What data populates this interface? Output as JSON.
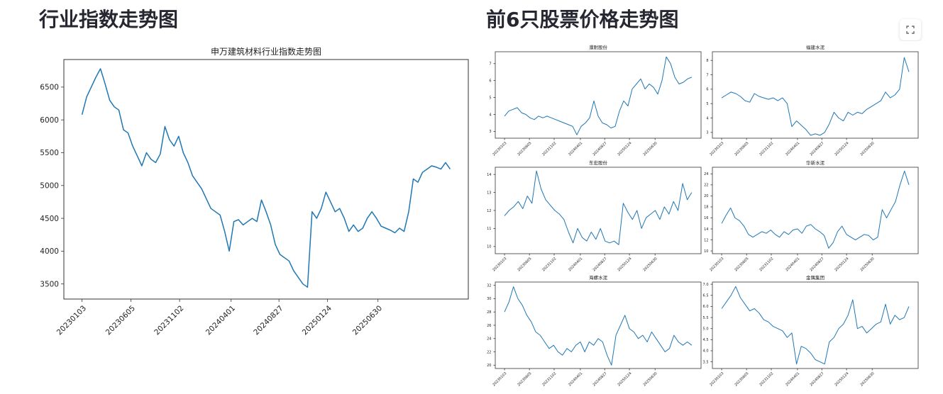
{
  "page": {
    "left_heading": "行业指数走势图",
    "right_heading": "前6只股票价格走势图"
  },
  "colors": {
    "line": "#1f77b4",
    "heading": "#262730"
  },
  "icons": {
    "fullscreen": "fullscreen-icon"
  },
  "chart_data": [
    {
      "type": "line",
      "title": "申万建筑材料行业指数走势图",
      "xlabel": "",
      "ylabel": "",
      "x_ticks": [
        "20230103",
        "20230605",
        "20231102",
        "20240401",
        "20240827",
        "20250124",
        "20250630"
      ],
      "y_ticks": [
        "3500",
        "4000",
        "4500",
        "5000",
        "5500",
        "6000",
        "6500"
      ],
      "ylim": [
        3270,
        6920
      ],
      "grid": false,
      "x_start": "2023-01-03",
      "x_end": "2025-10-20",
      "series": [
        {
          "values": [
            6080,
            6350,
            6500,
            6650,
            6780,
            6550,
            6300,
            6200,
            6150,
            5850,
            5800,
            5600,
            5450,
            5300,
            5500,
            5400,
            5350,
            5480,
            5900,
            5700,
            5600,
            5750,
            5500,
            5350,
            5150,
            5050,
            4950,
            4800,
            4650,
            4600,
            4550,
            4300,
            4000,
            4450,
            4480,
            4400,
            4450,
            4500,
            4450,
            4780,
            4600,
            4400,
            4100,
            3950,
            3900,
            3850,
            3700,
            3600,
            3500,
            3450,
            4600,
            4500,
            4650,
            4900,
            4750,
            4600,
            4650,
            4500,
            4300,
            4400,
            4300,
            4350,
            4500,
            4600,
            4500,
            4380,
            4350,
            4320,
            4280,
            4350,
            4300,
            4600,
            5100,
            5050,
            5200,
            5250,
            5300,
            5280,
            5250,
            5350,
            5250
          ]
        }
      ]
    },
    {
      "type": "line",
      "title": "濮耐股份",
      "x_ticks": [
        "20230103",
        "20230605",
        "20231102",
        "20240401",
        "20240827",
        "20250124",
        "20250630"
      ],
      "y_ticks": [
        "3",
        "4",
        "5",
        "6",
        "7"
      ],
      "ylim": [
        2.6,
        7.7
      ],
      "series": [
        {
          "values": [
            3.9,
            4.2,
            4.3,
            4.4,
            4.1,
            4.0,
            3.8,
            3.7,
            3.9,
            3.8,
            3.9,
            3.8,
            3.7,
            3.6,
            3.5,
            3.4,
            3.3,
            2.8,
            3.3,
            3.5,
            3.8,
            4.8,
            3.9,
            3.5,
            3.4,
            3.2,
            3.3,
            4.2,
            4.8,
            4.5,
            5.5,
            5.8,
            6.1,
            5.5,
            5.8,
            5.6,
            5.2,
            6.0,
            7.4,
            7.0,
            6.2,
            5.8,
            5.9,
            6.1,
            6.2
          ]
        }
      ]
    },
    {
      "type": "line",
      "title": "福建水泥",
      "x_ticks": [
        "20230103",
        "20230605",
        "20231102",
        "20240401",
        "20240827",
        "20250124",
        "20250630"
      ],
      "y_ticks": [
        "3",
        "4",
        "5",
        "6",
        "7",
        "8"
      ],
      "ylim": [
        2.6,
        8.6
      ],
      "series": [
        {
          "values": [
            5.4,
            5.6,
            5.8,
            5.7,
            5.5,
            5.2,
            5.1,
            5.7,
            5.5,
            5.4,
            5.3,
            5.4,
            5.2,
            5.4,
            5.0,
            3.4,
            3.8,
            3.5,
            3.2,
            2.8,
            2.9,
            2.8,
            3.0,
            3.6,
            4.4,
            4.0,
            3.8,
            4.4,
            4.2,
            4.4,
            4.3,
            4.6,
            4.8,
            5.0,
            5.2,
            5.8,
            5.4,
            5.6,
            6.0,
            8.2,
            7.2
          ]
        }
      ]
    },
    {
      "type": "line",
      "title": "东宏股份",
      "x_ticks": [
        "20230103",
        "20230605",
        "20231102",
        "20240401",
        "20240827",
        "20250124",
        "20250630"
      ],
      "y_ticks": [
        "10",
        "11",
        "12",
        "13",
        "14"
      ],
      "ylim": [
        9.6,
        14.4
      ],
      "series": [
        {
          "values": [
            11.7,
            12.0,
            12.2,
            12.5,
            12.1,
            12.8,
            12.4,
            14.2,
            13.2,
            12.6,
            12.3,
            12.0,
            11.8,
            11.5,
            10.8,
            10.2,
            11.0,
            10.5,
            10.3,
            10.8,
            10.4,
            11.0,
            10.3,
            10.2,
            10.3,
            10.1,
            12.4,
            11.9,
            11.5,
            12.0,
            11.0,
            11.6,
            11.8,
            12.0,
            11.5,
            12.2,
            11.8,
            12.5,
            12.0,
            13.5,
            12.6,
            13.0
          ]
        }
      ]
    },
    {
      "type": "line",
      "title": "华新水泥",
      "x_ticks": [
        "20230103",
        "20230605",
        "20231102",
        "20240401",
        "20240827",
        "20250124",
        "20250630"
      ],
      "y_ticks": [
        "10",
        "12",
        "14",
        "16",
        "18",
        "20",
        "22",
        "24"
      ],
      "ylim": [
        9.5,
        25.2
      ],
      "series": [
        {
          "values": [
            15.0,
            16.5,
            17.8,
            16.0,
            15.5,
            14.5,
            13.0,
            12.5,
            13.0,
            13.5,
            13.2,
            13.8,
            13.0,
            12.5,
            13.5,
            13.0,
            13.8,
            14.0,
            13.2,
            14.5,
            14.8,
            14.0,
            13.5,
            12.8,
            10.5,
            11.5,
            13.5,
            14.5,
            13.0,
            12.5,
            12.0,
            12.5,
            13.0,
            12.8,
            12.0,
            12.5,
            17.5,
            16.0,
            17.5,
            19.0,
            22.0,
            24.5,
            22.0
          ]
        }
      ]
    },
    {
      "type": "line",
      "title": "海螺水泥",
      "x_ticks": [
        "20230103",
        "20230605",
        "20231102",
        "20240401",
        "20240827",
        "20250124",
        "20250630"
      ],
      "y_ticks": [
        "20",
        "22",
        "24",
        "26",
        "28",
        "30",
        "32"
      ],
      "ylim": [
        19.5,
        32.5
      ],
      "series": [
        {
          "values": [
            28.0,
            29.5,
            31.8,
            30.0,
            29.0,
            27.5,
            26.5,
            25.0,
            24.5,
            23.5,
            22.5,
            23.0,
            22.0,
            21.5,
            22.5,
            22.0,
            23.0,
            23.5,
            22.0,
            23.5,
            23.0,
            24.0,
            23.5,
            21.5,
            20.0,
            24.5,
            26.0,
            27.5,
            25.5,
            25.0,
            24.0,
            24.5,
            23.5,
            25.0,
            24.0,
            23.0,
            22.0,
            22.5,
            24.5,
            23.5,
            23.0,
            23.5,
            23.0
          ]
        }
      ]
    },
    {
      "type": "line",
      "title": "金隅集团",
      "x_ticks": [
        "20230103",
        "20230605",
        "20231102",
        "20240401",
        "20240827",
        "20250124",
        "20250630"
      ],
      "y_ticks": [
        "3.5",
        "4.0",
        "4.5",
        "5.0",
        "5.5",
        "6.0",
        "6.5",
        "7.0"
      ],
      "ylim": [
        3.2,
        7.1
      ],
      "series": [
        {
          "values": [
            5.9,
            6.2,
            6.5,
            6.9,
            6.4,
            6.1,
            5.8,
            5.9,
            5.7,
            5.4,
            5.3,
            5.1,
            5.0,
            4.9,
            4.6,
            4.8,
            3.4,
            4.2,
            4.1,
            3.9,
            3.6,
            3.5,
            3.4,
            4.4,
            4.6,
            5.0,
            5.2,
            5.6,
            6.3,
            5.0,
            5.1,
            4.8,
            5.0,
            5.2,
            5.3,
            6.1,
            5.2,
            5.6,
            5.4,
            5.5,
            6.0
          ]
        }
      ]
    }
  ]
}
